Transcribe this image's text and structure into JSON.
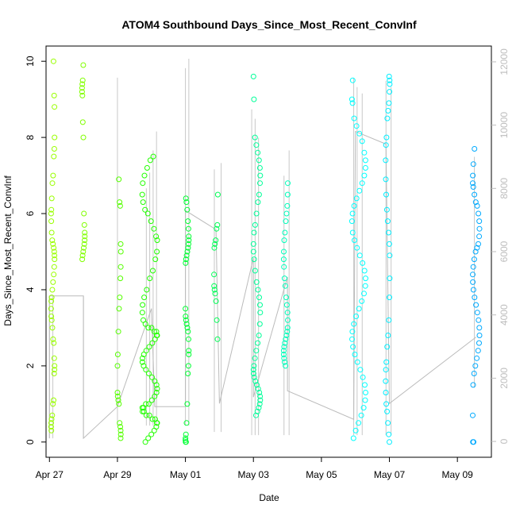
{
  "chart_data": {
    "type": "scatter",
    "title": "ATOM4 Southbound Days_Since_Most_Recent_ConvInf",
    "xlabel": "Date",
    "ylabel": "Days_Since_Most_Recent_ConvInf",
    "x_tick_labels": [
      "Apr 27",
      "Apr 29",
      "May 01",
      "May 03",
      "May 05",
      "May 07",
      "May 09"
    ],
    "x_tick_days": [
      0,
      2,
      4,
      6,
      8,
      10,
      12
    ],
    "xlim_days": [
      -0.1,
      13.0
    ],
    "ylim": [
      -0.4,
      10.4
    ],
    "y_ticks": [
      0,
      2,
      4,
      6,
      8,
      10
    ],
    "y2_ticks": [
      0,
      2000,
      4000,
      6000,
      8000,
      10000,
      12000
    ],
    "y2lim": [
      -500,
      12500
    ],
    "grid": false,
    "legend": "none",
    "point_clusters": [
      {
        "day": 0.1,
        "spread": 0.05,
        "values": [
          10.0,
          9.1,
          8.8,
          8.0,
          7.7,
          7.5,
          7.0,
          6.8,
          6.4,
          6.1,
          6.0,
          5.8,
          5.5,
          5.3,
          5.2,
          5.1,
          5.0,
          4.9,
          4.8,
          4.6,
          4.4,
          4.2,
          4.0,
          3.8,
          3.7,
          3.5,
          3.3,
          3.2,
          3.0,
          2.7,
          2.6,
          2.2,
          2.0,
          1.9,
          1.8,
          1.1,
          1.0,
          0.7,
          0.6,
          0.5,
          0.4,
          0.3
        ],
        "color": "#99ff00"
      },
      {
        "day": 1.0,
        "spread": 0.04,
        "values": [
          9.9,
          9.5,
          9.4,
          9.3,
          9.2,
          9.1,
          8.4,
          8.0,
          6.0,
          5.7,
          5.5,
          5.4,
          5.3,
          5.2,
          5.1,
          5.0,
          4.9,
          4.8
        ],
        "color": "#80ff00"
      },
      {
        "day": 2.05,
        "spread": 0.05,
        "values": [
          6.9,
          6.3,
          6.2,
          5.2,
          5.0,
          4.6,
          4.3,
          3.8,
          3.5,
          2.9,
          2.3,
          2.0,
          1.3,
          1.2,
          1.1,
          1.0,
          0.5,
          0.4,
          0.3,
          0.2,
          0.1
        ],
        "color": "#55ff00"
      },
      {
        "day": 2.95,
        "spread": 0.22,
        "values": [
          7.5,
          7.4,
          7.2,
          7.0,
          6.8,
          6.5,
          6.3,
          6.1,
          6.0,
          5.8,
          5.6,
          5.4,
          5.3,
          5.0,
          4.8,
          4.5,
          4.3,
          4.0,
          3.8,
          3.6,
          3.4,
          3.2,
          3.1,
          3.0,
          3.0,
          2.9,
          2.9,
          2.8,
          2.8,
          2.7,
          2.6,
          2.5,
          2.4,
          2.3,
          2.2,
          2.1,
          2.0,
          1.9,
          1.8,
          1.7,
          1.6,
          1.5,
          1.4,
          1.3,
          1.2,
          1.1,
          1.0,
          1.0,
          0.9,
          0.9,
          0.8,
          0.8,
          0.7,
          0.7,
          0.6,
          0.6,
          0.5,
          0.5,
          0.4,
          0.3,
          0.2,
          0.1,
          0.0
        ],
        "color": "#22ff00"
      },
      {
        "day": 4.05,
        "spread": 0.05,
        "values": [
          6.4,
          6.3,
          6.1,
          5.8,
          5.6,
          5.4,
          5.3,
          5.2,
          5.1,
          5.0,
          4.9,
          4.8,
          4.7,
          3.5,
          3.3,
          3.2,
          3.1,
          3.0,
          2.9,
          2.7,
          2.4,
          2.3,
          2.0,
          1.8,
          1.0,
          0.5,
          0.2,
          0.1,
          0.05,
          0.0,
          0.0
        ],
        "color": "#00ff33"
      },
      {
        "day": 4.9,
        "spread": 0.06,
        "values": [
          6.5,
          5.7,
          5.6,
          5.3,
          5.2,
          5.1,
          4.4,
          4.1,
          4.0,
          3.9,
          3.7,
          3.2,
          2.7
        ],
        "color": "#00ff55"
      },
      {
        "day": 6.1,
        "spread": 0.1,
        "values": [
          9.6,
          9.0,
          8.0,
          7.8,
          7.6,
          7.4,
          7.2,
          7.0,
          6.8,
          6.5,
          6.3,
          6.0,
          5.7,
          5.5,
          5.2,
          5.0,
          4.8,
          4.5,
          4.2,
          4.0,
          3.8,
          3.6,
          3.4,
          3.1,
          2.8,
          2.6,
          2.4,
          2.2,
          2.0,
          1.9,
          1.8,
          1.7,
          1.6,
          1.5,
          1.4,
          1.3,
          1.2,
          1.1,
          1.0,
          0.9,
          0.8,
          0.7
        ],
        "color": "#00ff99"
      },
      {
        "day": 6.95,
        "spread": 0.06,
        "values": [
          6.8,
          6.5,
          6.2,
          6.0,
          5.8,
          5.5,
          5.3,
          5.0,
          4.8,
          4.6,
          4.3,
          4.1,
          3.8,
          3.6,
          3.4,
          3.2,
          3.0,
          2.9,
          2.8,
          2.7,
          2.6,
          2.5,
          2.4,
          2.3,
          2.2,
          2.1,
          2.0
        ],
        "color": "#00ffbb"
      },
      {
        "day": 9.1,
        "spread": 0.2,
        "values": [
          9.5,
          9.0,
          8.9,
          8.5,
          8.3,
          8.1,
          7.9,
          7.6,
          7.4,
          7.2,
          7.0,
          6.8,
          6.6,
          6.4,
          6.2,
          6.0,
          5.8,
          5.5,
          5.3,
          5.1,
          4.9,
          4.7,
          4.5,
          4.3,
          4.1,
          3.9,
          3.7,
          3.5,
          3.3,
          3.1,
          2.9,
          2.7,
          2.5,
          2.3,
          2.1,
          1.9,
          1.7,
          1.5,
          1.3,
          1.1,
          0.9,
          0.7,
          0.5,
          0.3,
          0.1
        ],
        "color": "#00ffff"
      },
      {
        "day": 9.95,
        "spread": 0.06,
        "values": [
          9.6,
          9.5,
          9.4,
          9.2,
          8.9,
          8.7,
          8.5,
          8.0,
          7.8,
          7.4,
          6.9,
          6.5,
          6.1,
          5.8,
          5.5,
          5.2,
          4.9,
          4.3,
          3.8,
          3.2,
          2.8,
          2.5,
          2.1,
          1.9,
          1.6,
          1.3,
          1.0,
          0.8,
          0.5,
          0.2,
          0.0
        ],
        "color": "#00eeff"
      },
      {
        "day": 12.55,
        "spread": 0.1,
        "values": [
          7.7,
          7.3,
          7.0,
          6.8,
          6.7,
          6.5,
          6.3,
          6.2,
          6.0,
          5.8,
          5.6,
          5.4,
          5.2,
          5.1,
          5.0,
          4.8,
          4.6,
          4.4,
          4.2,
          4.0,
          3.8,
          3.6,
          3.4,
          3.2,
          3.0,
          2.8,
          2.6,
          2.4,
          2.2,
          2.0,
          1.8,
          1.5,
          0.7,
          0.0,
          0.0
        ],
        "color": "#00aaff"
      }
    ],
    "spikes": [
      {
        "day": 0.0,
        "low": 100,
        "high": 4600
      },
      {
        "day": 0.1,
        "low": 100,
        "high": 4600
      },
      {
        "day": 1.0,
        "low": 100,
        "high": 4600
      },
      {
        "day": 2.0,
        "low": 500,
        "high": 11500
      },
      {
        "day": 2.85,
        "low": 500,
        "high": 8000
      },
      {
        "day": 2.95,
        "low": 500,
        "high": 8500
      },
      {
        "day": 3.05,
        "low": 500,
        "high": 9200
      },
      {
        "day": 3.15,
        "low": 500,
        "high": 9800
      },
      {
        "day": 4.0,
        "low": 500,
        "high": 11800
      },
      {
        "day": 4.1,
        "low": 500,
        "high": 12100
      },
      {
        "day": 4.85,
        "low": 300,
        "high": 8600
      },
      {
        "day": 5.05,
        "low": 300,
        "high": 8800
      },
      {
        "day": 5.95,
        "low": 200,
        "high": 10500
      },
      {
        "day": 6.05,
        "low": 200,
        "high": 10200
      },
      {
        "day": 6.15,
        "low": 200,
        "high": 9600
      },
      {
        "day": 6.9,
        "low": 200,
        "high": 8400
      },
      {
        "day": 7.05,
        "low": 200,
        "high": 9200
      },
      {
        "day": 8.95,
        "low": 200,
        "high": 11500
      },
      {
        "day": 9.05,
        "low": 200,
        "high": 11200
      },
      {
        "day": 9.2,
        "low": 200,
        "high": 11000
      },
      {
        "day": 9.9,
        "low": 200,
        "high": 11400
      },
      {
        "day": 10.05,
        "low": 200,
        "high": 11200
      },
      {
        "day": 12.5,
        "low": 1700,
        "high": 9000
      }
    ],
    "connector_line": [
      {
        "day": 0.0,
        "y2": 100
      },
      {
        "day": 0.0,
        "y2": 4600
      },
      {
        "day": 1.0,
        "y2": 4600
      },
      {
        "day": 1.0,
        "y2": 100
      },
      {
        "day": 2.0,
        "y2": 1100
      },
      {
        "day": 3.0,
        "y2": 4200
      },
      {
        "day": 3.1,
        "y2": 1100
      },
      {
        "day": 4.0,
        "y2": 1100
      },
      {
        "day": 4.0,
        "y2": 7300
      },
      {
        "day": 4.9,
        "y2": 6700
      },
      {
        "day": 5.0,
        "y2": 1200
      },
      {
        "day": 6.0,
        "y2": 5800
      },
      {
        "day": 6.0,
        "y2": 1400
      },
      {
        "day": 7.0,
        "y2": 5200
      },
      {
        "day": 7.0,
        "y2": 1600
      },
      {
        "day": 8.95,
        "y2": 700
      },
      {
        "day": 9.0,
        "y2": 9800
      },
      {
        "day": 9.9,
        "y2": 9400
      },
      {
        "day": 10.0,
        "y2": 1200
      },
      {
        "day": 12.55,
        "y2": 3300
      }
    ]
  },
  "colors": {
    "background": "#ffffff",
    "axis": "#000000",
    "right_axis": "#bdbdbd",
    "spike_line": "#c8c8c8"
  }
}
